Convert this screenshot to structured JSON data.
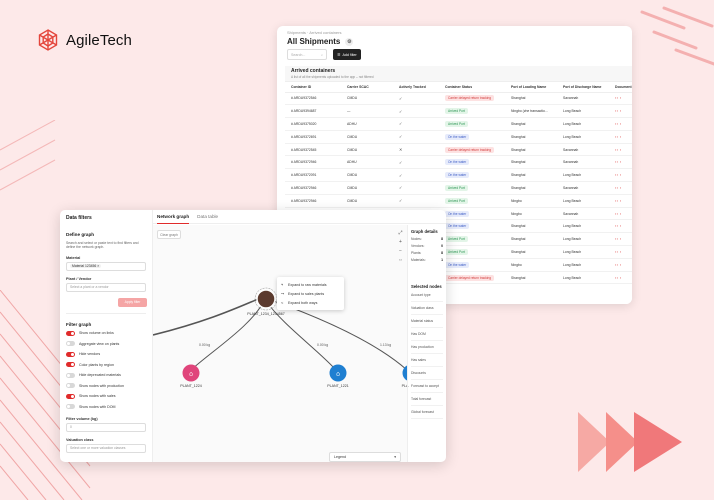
{
  "brand": {
    "name": "AgileTech"
  },
  "shipments": {
    "breadcrumb": "Shipments · Arrived containers",
    "title": "All Shipments",
    "search_placeholder": "Search...",
    "filter_label": "Add filter",
    "panel_title": "Arrived containers",
    "panel_subtitle": "A list of all the shipments uploaded to the app – not filtered",
    "columns": [
      "Container ID",
      "Carrier SCAC",
      "Actively Tracked",
      "Container Status",
      "Port of Loading Name",
      "Port of Discharge Name",
      "Document"
    ],
    "rows": [
      {
        "id": "# ARDU9372546",
        "scac": "CMDU",
        "tracked": "✓",
        "status": "Carrier delayed return tracking",
        "status_color": "red",
        "pol": "Shanghai",
        "pod": "Savannah"
      },
      {
        "id": "# ARDU9394687",
        "scac": "—",
        "tracked": "✓",
        "status": "Arrived Port",
        "status_color": "green",
        "pol": "Ningbo (zhe transactio...",
        "pod": "Long Beach"
      },
      {
        "id": "# ARDU9375020",
        "scac": "ADHU",
        "tracked": "✓",
        "status": "Arrived Port",
        "status_color": "green",
        "pol": "Shanghai",
        "pod": "Long Beach"
      },
      {
        "id": "# ARDU9372691",
        "scac": "CMDU",
        "tracked": "✓",
        "status": "On the water",
        "status_color": "blue",
        "pol": "Shanghai",
        "pod": "Long Beach"
      },
      {
        "id": "# ARDU9372545",
        "scac": "CMDU",
        "tracked": "✕",
        "status": "Carrier delayed return tracking",
        "status_color": "red",
        "pol": "Shanghai",
        "pod": "Savannah"
      },
      {
        "id": "# ARDU9372946",
        "scac": "ADHU",
        "tracked": "✓",
        "status": "On the water",
        "status_color": "blue",
        "pol": "Shanghai",
        "pod": "Savannah"
      },
      {
        "id": "# ARDU9372091",
        "scac": "CMDU",
        "tracked": "✓",
        "status": "On the water",
        "status_color": "blue",
        "pol": "Shanghai",
        "pod": "Long Beach"
      },
      {
        "id": "# ARDU9372946",
        "scac": "CMDU",
        "tracked": "✓",
        "status": "Arrived Port",
        "status_color": "green",
        "pol": "Shanghai",
        "pod": "Savannah"
      },
      {
        "id": "# ARDU9372946",
        "scac": "CMDU",
        "tracked": "✓",
        "status": "Arrived Port",
        "status_color": "green",
        "pol": "Ningbo",
        "pod": "Long Beach"
      },
      {
        "id": "",
        "scac": "",
        "tracked": "",
        "status": "On the water",
        "status_color": "blue",
        "pol": "Ningbo",
        "pod": "Savannah"
      },
      {
        "id": "",
        "scac": "",
        "tracked": "",
        "status": "On the water",
        "status_color": "blue",
        "pol": "Shanghai",
        "pod": "Long Beach"
      },
      {
        "id": "",
        "scac": "",
        "tracked": "",
        "status": "Arrived Port",
        "status_color": "green",
        "pol": "Shanghai",
        "pod": "Long Beach"
      },
      {
        "id": "",
        "scac": "",
        "tracked": "",
        "status": "Arrived Port",
        "status_color": "green",
        "pol": "Shanghai",
        "pod": "Long Beach"
      },
      {
        "id": "",
        "scac": "",
        "tracked": "",
        "status": "On the water",
        "status_color": "blue",
        "pol": "Ningbo",
        "pod": "Long Beach"
      },
      {
        "id": "",
        "scac": "",
        "tracked": "",
        "status": "Carrier delayed return tracking",
        "status_color": "red",
        "pol": "Shanghai",
        "pod": "Long Beach"
      }
    ]
  },
  "network": {
    "sidebar": {
      "title": "Data filters",
      "define_title": "Define graph",
      "define_desc": "Search and select or paste text to find filters and define the network graph.",
      "material_label": "Material",
      "material_chip": "Material 123456",
      "plant_label": "Plant / Vendor",
      "plant_placeholder": "Select a plant or a vendor",
      "apply_label": "Apply filter",
      "filter_graph_title": "Filter graph",
      "toggles": [
        {
          "label": "Show volume on links",
          "on": true
        },
        {
          "label": "Aggregate view on plants",
          "on": false
        },
        {
          "label": "Hide vendors",
          "on": true
        },
        {
          "label": "Color plants by region",
          "on": true
        },
        {
          "label": "Hide deprecated materials",
          "on": false
        },
        {
          "label": "Show nodes with production",
          "on": false
        },
        {
          "label": "Show nodes with sales",
          "on": true
        },
        {
          "label": "Show nodes with DOM",
          "on": false
        }
      ],
      "volume_label": "Filter volume (kg)",
      "volume_value": "0",
      "valuation_label": "Valuation class",
      "valuation_placeholder": "Select one or more valuation classes"
    },
    "tabs": [
      {
        "label": "Network graph",
        "active": true
      },
      {
        "label": "Data table",
        "active": false
      }
    ],
    "clear_label": "Clear graph",
    "context_menu": [
      {
        "icon": "branch-icon",
        "glyph": "⑂",
        "label": "Expand to raw materials"
      },
      {
        "icon": "merge-icon",
        "glyph": "⤳",
        "label": "Expand to sales plants"
      },
      {
        "icon": "share-icon",
        "glyph": "<",
        "label": "Expand both ways"
      }
    ],
    "nodes": {
      "main": "PLANT_1234_1234567",
      "left": "PLANT_1224",
      "middle": "PLANT_1221",
      "right": "PLA"
    },
    "edge_labels": [
      "0.00 kg",
      "0.00 kg",
      "1.13 kg"
    ],
    "legend_label": "Legend",
    "details": {
      "title": "Graph details",
      "stats": [
        {
          "label": "Nodes:",
          "value": "8"
        },
        {
          "label": "Vendors:",
          "value": "0"
        },
        {
          "label": "Plants:",
          "value": "8"
        },
        {
          "label": "Materials:",
          "value": "1"
        }
      ],
      "selected_title": "Selected nodes",
      "fields": [
        "Account type",
        "Valuation class",
        "Material status",
        "Has DOM",
        "Has production",
        "Has sales",
        "Discounts",
        "Forecast to accept",
        "Total forecast",
        "Global forecast"
      ]
    },
    "colors": {
      "accent": "#e02b2b",
      "node_pink": "#e0457b",
      "node_blue": "#1f7fd1",
      "node_main": "#5b3a2e"
    }
  }
}
